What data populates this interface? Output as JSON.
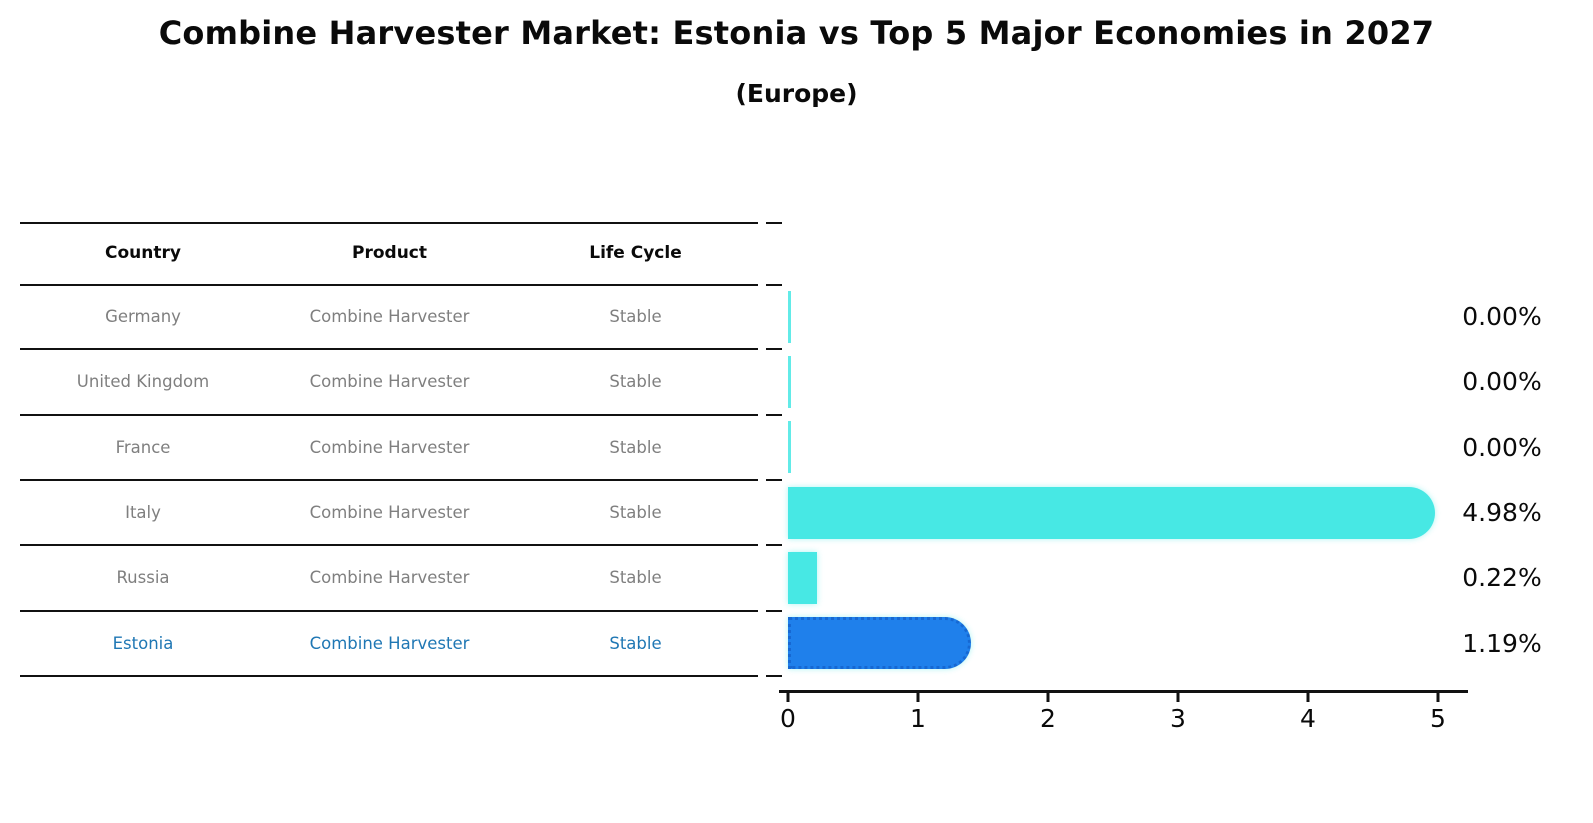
{
  "title": "Combine Harvester Market: Estonia vs Top 5 Major Economies in 2027",
  "subtitle": "(Europe)",
  "table": {
    "headers": [
      "Country",
      "Product",
      "Life Cycle"
    ],
    "rows": [
      {
        "country": "Germany",
        "product": "Combine Harvester",
        "life_cycle": "Stable",
        "value": 0.0,
        "value_label": "0.00%",
        "highlight": false
      },
      {
        "country": "United Kingdom",
        "product": "Combine Harvester",
        "life_cycle": "Stable",
        "value": 0.0,
        "value_label": "0.00%",
        "highlight": false
      },
      {
        "country": "France",
        "product": "Combine Harvester",
        "life_cycle": "Stable",
        "value": 0.0,
        "value_label": "0.00%",
        "highlight": false
      },
      {
        "country": "Italy",
        "product": "Combine Harvester",
        "life_cycle": "Stable",
        "value": 4.98,
        "value_label": "4.98%",
        "highlight": false
      },
      {
        "country": "Russia",
        "product": "Combine Harvester",
        "life_cycle": "Stable",
        "value": 0.22,
        "value_label": "0.22%",
        "highlight": false
      },
      {
        "country": "Estonia",
        "product": "Combine Harvester",
        "life_cycle": "Stable",
        "value": 1.19,
        "value_label": "1.19%",
        "highlight": true
      }
    ]
  },
  "chart_data": {
    "type": "bar",
    "orientation": "horizontal",
    "title": "Combine Harvester Market: Estonia vs Top 5 Major Economies in 2027 (Europe)",
    "categories": [
      "Germany",
      "United Kingdom",
      "France",
      "Italy",
      "Russia",
      "Estonia"
    ],
    "values": [
      0.0,
      0.0,
      0.0,
      4.98,
      0.22,
      1.19
    ],
    "value_labels": [
      "0.00%",
      "0.00%",
      "0.00%",
      "4.98%",
      "0.22%",
      "1.19%"
    ],
    "xlabel": "",
    "ylabel": "",
    "xlim": [
      0,
      5.3
    ],
    "x_ticks": [
      0,
      1,
      2,
      3,
      4,
      5
    ],
    "grid": false,
    "legend_position": "none",
    "bar_color": "#47E8E4",
    "highlight_bar_color": "#1F80EB",
    "highlight_border_color": "#1668D2",
    "highlight_text_color": "#1F77B4"
  },
  "axis": {
    "ticks": [
      "0",
      "1",
      "2",
      "3",
      "4",
      "5"
    ]
  },
  "colors": {
    "bar_teal": "#47E8E4",
    "bar_blue": "#1F80EB",
    "blue_dotted_border": "#1668D2",
    "estonia_text": "#1F77B4",
    "muted_text": "#7F7F7F",
    "line_black": "#111111"
  }
}
